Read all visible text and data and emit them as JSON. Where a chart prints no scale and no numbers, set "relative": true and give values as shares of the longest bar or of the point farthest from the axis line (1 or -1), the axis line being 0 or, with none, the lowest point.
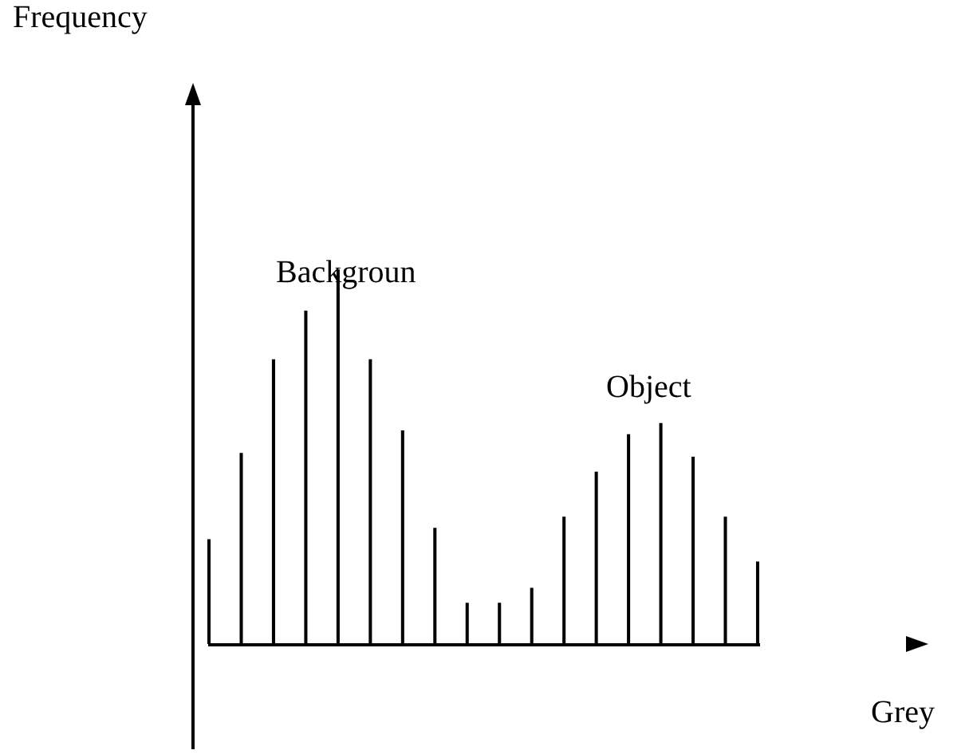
{
  "chart_data": {
    "type": "bar",
    "relative": true,
    "xlabel": "Grey",
    "color": "#000000",
    "categories": [
      null,
      null,
      null,
      null,
      null,
      null,
      null,
      null,
      null,
      null,
      null,
      null,
      null,
      null,
      null,
      null,
      null,
      null
    ],
    "values": [
      0.28,
      0.51,
      0.76,
      0.89,
      1,
      0.76,
      0.57,
      0.31,
      0.11,
      0.11,
      0.15,
      0.34,
      0.46,
      0.56,
      0.59,
      0.5,
      0.34,
      0.22
    ],
    "annotations": [
      "Frequency",
      "Backgroun",
      "Object"
    ]
  }
}
